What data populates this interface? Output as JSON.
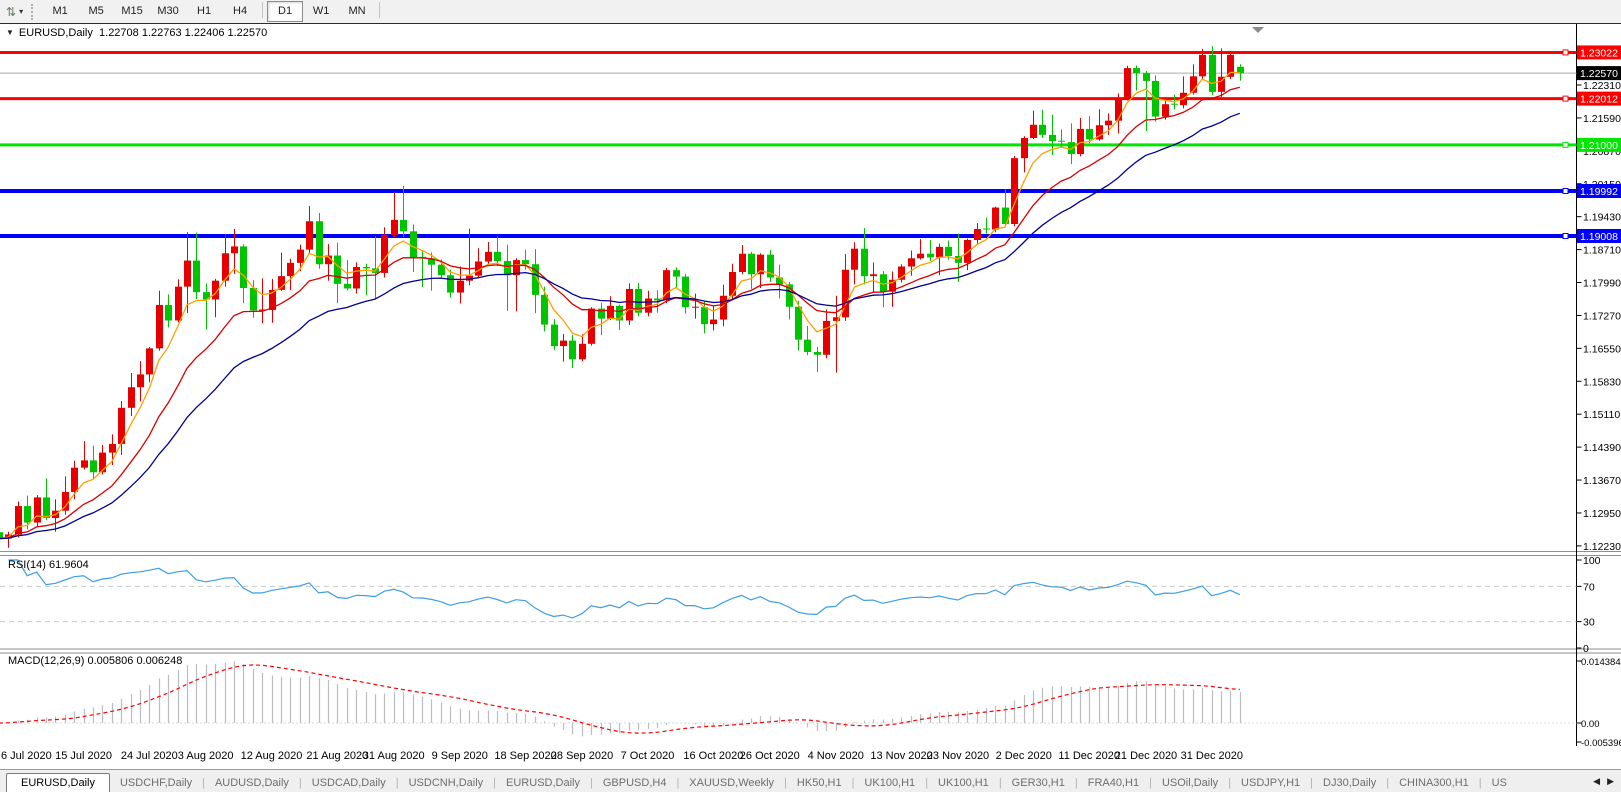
{
  "toolbar": {
    "timeframes": [
      "M1",
      "M5",
      "M15",
      "M30",
      "H1",
      "H4",
      "D1",
      "W1",
      "MN"
    ],
    "active_timeframe": "D1"
  },
  "chart": {
    "overlay": {
      "symbol": "EURUSD,Daily"
    }
  },
  "chart_data": {
    "type": "candlestick",
    "symbol": "EURUSD",
    "period": "Daily",
    "current_bar": {
      "open": "1.22708",
      "high": "1.22763",
      "low": "1.22406",
      "close": "1.22570"
    },
    "up_color": "#E60000",
    "down_color": "#00C400",
    "price_axis_ticks": [
      "1.22310",
      "1.21590",
      "1.20870",
      "1.20150",
      "1.19430",
      "1.18710",
      "1.17990",
      "1.17270",
      "1.16550",
      "1.15830",
      "1.15110",
      "1.14390",
      "1.13670",
      "1.12950",
      "1.12230"
    ],
    "horizontal_lines": [
      {
        "price": 1.23022,
        "label": "1.23022",
        "color": "#FF0000",
        "width": 3
      },
      {
        "price": 1.22012,
        "label": "1.22012",
        "color": "#FF0000",
        "width": 3
      },
      {
        "price": 1.21,
        "label": "1.21000",
        "color": "#00E800",
        "width": 3
      },
      {
        "price": 1.19992,
        "label": "1.19992",
        "color": "#0000FF",
        "width": 4
      },
      {
        "price": 1.19008,
        "label": "1.19008",
        "color": "#0000FF",
        "width": 4
      }
    ],
    "bid_line": {
      "price": 1.2257,
      "label": "1.22570",
      "line_color": "#ABABAB",
      "label_bg": "#000000"
    },
    "moving_averages": [
      {
        "color": "#FFA000",
        "ema_period": 5
      },
      {
        "color": "#D80000",
        "ema_period": 13
      },
      {
        "color": "#000090",
        "ema_period": 24
      }
    ],
    "date_labels": [
      {
        "label": "6 Jul 2020",
        "bar": 2
      },
      {
        "label": "15 Jul 2020",
        "bar": 9
      },
      {
        "label": "24 Jul 2020",
        "bar": 16
      },
      {
        "label": "3 Aug 2020",
        "bar": 22
      },
      {
        "label": "12 Aug 2020",
        "bar": 29
      },
      {
        "label": "21 Aug 2020",
        "bar": 36
      },
      {
        "label": "31 Aug 2020",
        "bar": 42
      },
      {
        "label": "9 Sep 2020",
        "bar": 49
      },
      {
        "label": "18 Sep 2020",
        "bar": 56
      },
      {
        "label": "28 Sep 2020",
        "bar": 62
      },
      {
        "label": "7 Oct 2020",
        "bar": 69
      },
      {
        "label": "16 Oct 2020",
        "bar": 76
      },
      {
        "label": "26 Oct 2020",
        "bar": 82
      },
      {
        "label": "4 Nov 2020",
        "bar": 89
      },
      {
        "label": "13 Nov 2020",
        "bar": 96
      },
      {
        "label": "23 Nov 2020",
        "bar": 102
      },
      {
        "label": "2 Dec 2020",
        "bar": 109
      },
      {
        "label": "11 Dec 2020",
        "bar": 116
      },
      {
        "label": "21 Dec 2020",
        "bar": 122
      },
      {
        "label": "31 Dec 2020",
        "bar": 129
      }
    ],
    "candles_ohlc": [
      [
        1.1253,
        1.1302,
        1.1224,
        1.1239
      ],
      [
        1.1239,
        1.1254,
        1.1219,
        1.1248
      ],
      [
        1.1248,
        1.132,
        1.1241,
        1.131
      ],
      [
        1.131,
        1.1333,
        1.1259,
        1.1274
      ],
      [
        1.1274,
        1.1334,
        1.1265,
        1.1329
      ],
      [
        1.1329,
        1.1371,
        1.1279,
        1.1284
      ],
      [
        1.1284,
        1.1325,
        1.1254,
        1.13
      ],
      [
        1.13,
        1.1375,
        1.1291,
        1.1341
      ],
      [
        1.1341,
        1.1409,
        1.1325,
        1.1394
      ],
      [
        1.1394,
        1.1452,
        1.139,
        1.141
      ],
      [
        1.141,
        1.1442,
        1.137,
        1.1384
      ],
      [
        1.1384,
        1.1444,
        1.1379,
        1.1427
      ],
      [
        1.1427,
        1.1467,
        1.14,
        1.1446
      ],
      [
        1.1446,
        1.154,
        1.1422,
        1.1525
      ],
      [
        1.1525,
        1.1601,
        1.1507,
        1.157
      ],
      [
        1.157,
        1.1627,
        1.1539,
        1.1598
      ],
      [
        1.1598,
        1.1658,
        1.1581,
        1.1655
      ],
      [
        1.1655,
        1.1781,
        1.165,
        1.175
      ],
      [
        1.175,
        1.1773,
        1.1701,
        1.1716
      ],
      [
        1.1716,
        1.1806,
        1.1712,
        1.179
      ],
      [
        1.179,
        1.1909,
        1.1732,
        1.1847
      ],
      [
        1.1847,
        1.1908,
        1.1763,
        1.1778
      ],
      [
        1.1778,
        1.1797,
        1.1696,
        1.1762
      ],
      [
        1.1762,
        1.1807,
        1.1723,
        1.1803
      ],
      [
        1.1803,
        1.1905,
        1.179,
        1.1863
      ],
      [
        1.1863,
        1.1916,
        1.1818,
        1.1878
      ],
      [
        1.1878,
        1.1883,
        1.1754,
        1.1787
      ],
      [
        1.1787,
        1.1804,
        1.1722,
        1.1738
      ],
      [
        1.1738,
        1.1808,
        1.171,
        1.1739
      ],
      [
        1.1739,
        1.1807,
        1.1711,
        1.1783
      ],
      [
        1.1783,
        1.1864,
        1.1781,
        1.1813
      ],
      [
        1.1813,
        1.1851,
        1.1782,
        1.1842
      ],
      [
        1.1842,
        1.1882,
        1.1824,
        1.1871
      ],
      [
        1.1871,
        1.1966,
        1.1863,
        1.1933
      ],
      [
        1.1933,
        1.1951,
        1.1829,
        1.1839
      ],
      [
        1.1839,
        1.1883,
        1.1803,
        1.1858
      ],
      [
        1.1858,
        1.1886,
        1.1754,
        1.1796
      ],
      [
        1.1796,
        1.1848,
        1.1782,
        1.1786
      ],
      [
        1.1786,
        1.1843,
        1.1775,
        1.1833
      ],
      [
        1.1833,
        1.184,
        1.1771,
        1.183
      ],
      [
        1.183,
        1.19,
        1.1762,
        1.182
      ],
      [
        1.182,
        1.192,
        1.181,
        1.1903
      ],
      [
        1.1903,
        1.1996,
        1.1898,
        1.1936
      ],
      [
        1.1936,
        1.2011,
        1.1898,
        1.1911
      ],
      [
        1.1911,
        1.1926,
        1.1822,
        1.1854
      ],
      [
        1.1854,
        1.1867,
        1.1789,
        1.1852
      ],
      [
        1.1852,
        1.1865,
        1.1781,
        1.1838
      ],
      [
        1.1838,
        1.1849,
        1.181,
        1.1815
      ],
      [
        1.1815,
        1.1827,
        1.1766,
        1.1777
      ],
      [
        1.1777,
        1.1834,
        1.1753,
        1.1803
      ],
      [
        1.1803,
        1.1917,
        1.1793,
        1.1814
      ],
      [
        1.1814,
        1.1874,
        1.1808,
        1.1845
      ],
      [
        1.1845,
        1.1888,
        1.1839,
        1.1866
      ],
      [
        1.1866,
        1.19,
        1.1835,
        1.1846
      ],
      [
        1.1846,
        1.1882,
        1.1737,
        1.1815
      ],
      [
        1.1815,
        1.1852,
        1.1736,
        1.1848
      ],
      [
        1.1848,
        1.1871,
        1.1827,
        1.1839
      ],
      [
        1.1839,
        1.1872,
        1.1732,
        1.1772
      ],
      [
        1.1772,
        1.179,
        1.1692,
        1.1707
      ],
      [
        1.1707,
        1.1719,
        1.1651,
        1.166
      ],
      [
        1.166,
        1.1686,
        1.1626,
        1.1672
      ],
      [
        1.1672,
        1.1685,
        1.1612,
        1.1631
      ],
      [
        1.1631,
        1.1686,
        1.1627,
        1.1665
      ],
      [
        1.1665,
        1.1745,
        1.1661,
        1.1742
      ],
      [
        1.1742,
        1.1755,
        1.1684,
        1.172
      ],
      [
        1.172,
        1.1769,
        1.1717,
        1.1748
      ],
      [
        1.1748,
        1.1751,
        1.1695,
        1.1716
      ],
      [
        1.1716,
        1.1797,
        1.1706,
        1.1785
      ],
      [
        1.1785,
        1.1798,
        1.1725,
        1.1733
      ],
      [
        1.1733,
        1.1781,
        1.1725,
        1.1764
      ],
      [
        1.1764,
        1.1782,
        1.1733,
        1.176
      ],
      [
        1.176,
        1.1831,
        1.1754,
        1.1826
      ],
      [
        1.1826,
        1.1832,
        1.1786,
        1.1812
      ],
      [
        1.1812,
        1.1818,
        1.1731,
        1.1745
      ],
      [
        1.1745,
        1.1775,
        1.172,
        1.1745
      ],
      [
        1.1745,
        1.1758,
        1.1688,
        1.1708
      ],
      [
        1.1708,
        1.1747,
        1.1694,
        1.1718
      ],
      [
        1.1718,
        1.1794,
        1.1703,
        1.177
      ],
      [
        1.177,
        1.184,
        1.176,
        1.1822
      ],
      [
        1.1822,
        1.1881,
        1.1817,
        1.1862
      ],
      [
        1.1862,
        1.1866,
        1.1785,
        1.1817
      ],
      [
        1.1817,
        1.1863,
        1.1787,
        1.186
      ],
      [
        1.186,
        1.187,
        1.18,
        1.181
      ],
      [
        1.181,
        1.1838,
        1.1764,
        1.1795
      ],
      [
        1.1795,
        1.18,
        1.1718,
        1.1746
      ],
      [
        1.1746,
        1.1759,
        1.165,
        1.1674
      ],
      [
        1.1674,
        1.1704,
        1.164,
        1.1647
      ],
      [
        1.1647,
        1.1658,
        1.1603,
        1.1641
      ],
      [
        1.1641,
        1.174,
        1.1633,
        1.1715
      ],
      [
        1.1715,
        1.177,
        1.1602,
        1.1723
      ],
      [
        1.1723,
        1.1861,
        1.1715,
        1.1827
      ],
      [
        1.1827,
        1.1887,
        1.1795,
        1.1873
      ],
      [
        1.1873,
        1.1918,
        1.1795,
        1.1813
      ],
      [
        1.1813,
        1.1843,
        1.1779,
        1.1817
      ],
      [
        1.1817,
        1.1824,
        1.1745,
        1.1779
      ],
      [
        1.1779,
        1.1823,
        1.1746,
        1.1805
      ],
      [
        1.1805,
        1.1839,
        1.1799,
        1.1834
      ],
      [
        1.1834,
        1.1869,
        1.1814,
        1.1852
      ],
      [
        1.1852,
        1.1894,
        1.1849,
        1.1862
      ],
      [
        1.1862,
        1.1892,
        1.1846,
        1.1854
      ],
      [
        1.1854,
        1.1884,
        1.1815,
        1.1877
      ],
      [
        1.1877,
        1.1891,
        1.1849,
        1.1857
      ],
      [
        1.1857,
        1.1906,
        1.18,
        1.1842
      ],
      [
        1.1842,
        1.1895,
        1.1826,
        1.1892
      ],
      [
        1.1892,
        1.1929,
        1.1881,
        1.1916
      ],
      [
        1.1916,
        1.1941,
        1.1906,
        1.1915
      ],
      [
        1.1915,
        1.1965,
        1.1909,
        1.1963
      ],
      [
        1.1963,
        1.2003,
        1.1923,
        1.1927
      ],
      [
        1.1927,
        1.2076,
        1.1922,
        1.2071
      ],
      [
        1.2071,
        1.2119,
        1.204,
        1.2115
      ],
      [
        1.2115,
        1.2175,
        1.2113,
        1.2144
      ],
      [
        1.2144,
        1.2177,
        1.2115,
        1.2122
      ],
      [
        1.2122,
        1.2166,
        1.2078,
        1.2108
      ],
      [
        1.2108,
        1.2134,
        1.2094,
        1.2106
      ],
      [
        1.2106,
        1.2147,
        1.2058,
        1.208
      ],
      [
        1.208,
        1.2159,
        1.2075,
        1.2135
      ],
      [
        1.2135,
        1.2163,
        1.2104,
        1.2112
      ],
      [
        1.2112,
        1.2178,
        1.2109,
        1.2143
      ],
      [
        1.2143,
        1.2169,
        1.2122,
        1.2153
      ],
      [
        1.2153,
        1.2212,
        1.2125,
        1.2199
      ],
      [
        1.2199,
        1.2273,
        1.2197,
        1.2268
      ],
      [
        1.2268,
        1.2274,
        1.2219,
        1.2257
      ],
      [
        1.2257,
        1.2262,
        1.213,
        1.224
      ],
      [
        1.224,
        1.2252,
        1.2151,
        1.2162
      ],
      [
        1.2162,
        1.2196,
        1.2155,
        1.2189
      ],
      [
        1.2189,
        1.221,
        1.2178,
        1.2187
      ],
      [
        1.2187,
        1.225,
        1.218,
        1.2214
      ],
      [
        1.2214,
        1.2276,
        1.221,
        1.225
      ],
      [
        1.225,
        1.231,
        1.2243,
        1.2297
      ],
      [
        1.2297,
        1.2316,
        1.2209,
        1.2216
      ],
      [
        1.2216,
        1.2311,
        1.2205,
        1.2249
      ],
      [
        1.2249,
        1.2303,
        1.2244,
        1.2297
      ],
      [
        1.22708,
        1.22763,
        1.22406,
        1.2257
      ]
    ]
  },
  "rsi": {
    "title": "RSI(14)",
    "value": "61.9604",
    "period": 14,
    "axis_labels": [
      "100",
      "70",
      "30",
      "0"
    ],
    "levels": [
      70,
      30
    ],
    "line_color": "#3E9EE4",
    "level_color": "#C8C8C8"
  },
  "macd": {
    "title": "MACD(12,26,9)",
    "value_main": "0.005806",
    "value_signal": "0.006248",
    "fast": 12,
    "slow": 26,
    "signal": 9,
    "axis_labels": [
      "0.014384",
      "0.00",
      "-0.005396"
    ],
    "axis_max": 0.014384,
    "axis_min": -0.005396,
    "histogram_color": "#BDBDBD",
    "signal_color": "#FF0000"
  },
  "tabs": {
    "active_index": 0,
    "items": [
      "EURUSD,Daily",
      "USDCHF,Daily",
      "AUDUSD,Daily",
      "USDCAD,Daily",
      "USDCNH,Daily",
      "EURUSD,Daily",
      "GBPUSD,H4",
      "XAUUSD,Weekly",
      "HK50,H1",
      "UK100,H1",
      "UK100,H1",
      "GER30,H1",
      "FRA40,H1",
      "USOil,Daily",
      "USDJPY,H1",
      "DJ30,Daily",
      "CHINA300,H1",
      "US"
    ]
  }
}
